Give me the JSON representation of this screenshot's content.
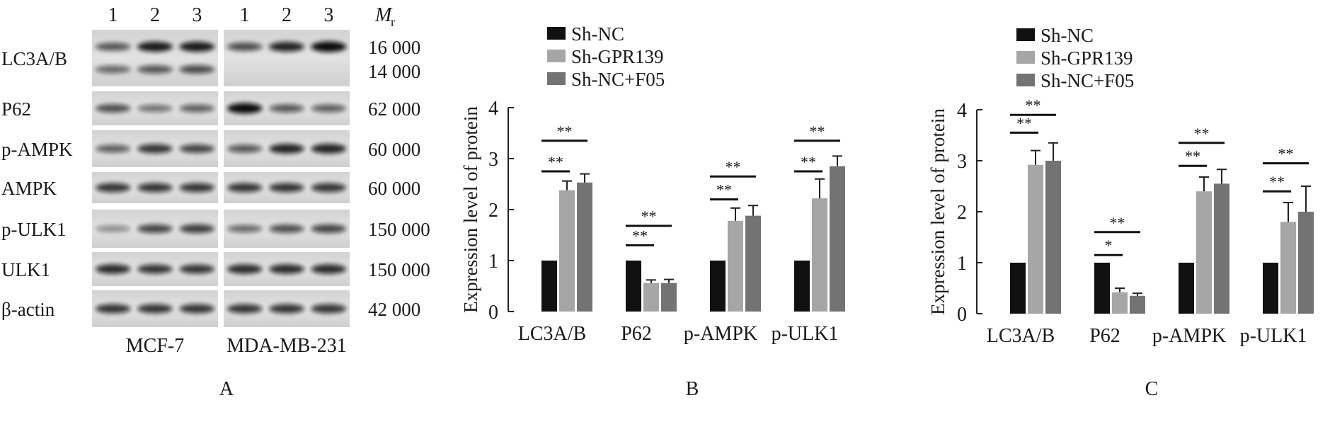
{
  "panel_a": {
    "label": "A",
    "lane_numbers": [
      "1",
      "2",
      "3"
    ],
    "mr_symbol": "M",
    "mr_subscript": "r",
    "cell_lines": [
      "MCF-7",
      "MDA-MB-231"
    ],
    "rows": [
      {
        "label": "LC3A/B",
        "mw": [
          "16 000",
          "14 000"
        ],
        "mcf7": [
          [
            0.55,
            0.9,
            0.9
          ],
          [
            0.45,
            0.55,
            0.6
          ]
        ],
        "mda": [
          [
            0.6,
            0.85,
            1.0
          ],
          [
            0.0,
            0.0,
            0.0
          ]
        ]
      },
      {
        "label": "P62",
        "mw": [
          "62 000"
        ],
        "mcf7": [
          [
            0.6,
            0.4,
            0.5
          ]
        ],
        "mda": [
          [
            1.0,
            0.55,
            0.5
          ]
        ]
      },
      {
        "label": "p-AMPK",
        "mw": [
          "60 000"
        ],
        "mcf7": [
          [
            0.5,
            0.75,
            0.65
          ]
        ],
        "mda": [
          [
            0.55,
            0.85,
            0.85
          ]
        ]
      },
      {
        "label": "AMPK",
        "mw": [
          "60 000"
        ],
        "mcf7": [
          [
            0.75,
            0.75,
            0.75
          ]
        ],
        "mda": [
          [
            0.75,
            0.75,
            0.75
          ]
        ]
      },
      {
        "label": "p-ULK1",
        "mw": [
          "150 000"
        ],
        "mcf7": [
          [
            0.25,
            0.65,
            0.7
          ]
        ],
        "mda": [
          [
            0.45,
            0.6,
            0.65
          ]
        ]
      },
      {
        "label": "ULK1",
        "mw": [
          "150 000"
        ],
        "mcf7": [
          [
            0.8,
            0.75,
            0.75
          ]
        ],
        "mda": [
          [
            0.8,
            0.8,
            0.8
          ]
        ]
      },
      {
        "label": "β-actin",
        "mw": [
          "42 000"
        ],
        "mcf7": [
          [
            0.75,
            0.75,
            0.75
          ]
        ],
        "mda": [
          [
            0.75,
            0.75,
            0.75
          ]
        ]
      }
    ]
  },
  "chart_data": [
    {
      "type": "bar",
      "panel_label": "B",
      "categories": [
        "LC3A/B",
        "P62",
        "p-AMPK",
        "p-ULK1"
      ],
      "series": [
        {
          "name": "Sh-NC",
          "values": [
            1.0,
            1.0,
            1.0,
            1.0
          ],
          "errors": [
            0,
            0,
            0,
            0
          ],
          "color": "#111111"
        },
        {
          "name": "Sh-GPR139",
          "values": [
            2.38,
            0.56,
            1.78,
            2.22
          ],
          "errors": [
            0.18,
            0.06,
            0.25,
            0.38
          ],
          "color": "#a6a6a6"
        },
        {
          "name": "Sh-NC+F05",
          "values": [
            2.53,
            0.56,
            1.88,
            2.85
          ],
          "errors": [
            0.17,
            0.07,
            0.2,
            0.2
          ],
          "color": "#737373"
        }
      ],
      "ylabel": "Expression level of protein",
      "ylim": [
        0,
        4
      ],
      "yticks": [
        0,
        1,
        2,
        3,
        4
      ],
      "significance": [
        {
          "category": 0,
          "to_series": 1,
          "label": "**",
          "y": 2.75
        },
        {
          "category": 0,
          "to_series": 2,
          "label": "**",
          "y": 3.35
        },
        {
          "category": 1,
          "to_series": 1,
          "label": "**",
          "y": 1.3
        },
        {
          "category": 1,
          "to_series": 2,
          "label": "**",
          "y": 1.68
        },
        {
          "category": 2,
          "to_series": 1,
          "label": "**",
          "y": 2.2
        },
        {
          "category": 2,
          "to_series": 2,
          "label": "**",
          "y": 2.65
        },
        {
          "category": 3,
          "to_series": 1,
          "label": "**",
          "y": 2.75
        },
        {
          "category": 3,
          "to_series": 2,
          "label": "**",
          "y": 3.35
        }
      ]
    },
    {
      "type": "bar",
      "panel_label": "C",
      "categories": [
        "LC3A/B",
        "P62",
        "p-AMPK",
        "p-ULK1"
      ],
      "series": [
        {
          "name": "Sh-NC",
          "values": [
            1.0,
            1.0,
            1.0,
            1.0
          ],
          "errors": [
            0,
            0,
            0,
            0
          ],
          "color": "#111111"
        },
        {
          "name": "Sh-GPR139",
          "values": [
            2.92,
            0.42,
            2.4,
            1.8
          ],
          "errors": [
            0.28,
            0.08,
            0.28,
            0.38
          ],
          "color": "#a6a6a6"
        },
        {
          "name": "Sh-NC+F05",
          "values": [
            3.0,
            0.35,
            2.55,
            2.0
          ],
          "errors": [
            0.35,
            0.05,
            0.28,
            0.5
          ],
          "color": "#737373"
        }
      ],
      "ylabel": "Expression level of protein",
      "ylim": [
        0,
        4
      ],
      "yticks": [
        0,
        1,
        2,
        3,
        4
      ],
      "significance": [
        {
          "category": 0,
          "to_series": 1,
          "label": "**",
          "y": 3.55
        },
        {
          "category": 0,
          "to_series": 2,
          "label": "**",
          "y": 3.9
        },
        {
          "category": 1,
          "to_series": 1,
          "label": "*",
          "y": 1.15
        },
        {
          "category": 1,
          "to_series": 2,
          "label": "**",
          "y": 1.6
        },
        {
          "category": 2,
          "to_series": 1,
          "label": "**",
          "y": 2.9
        },
        {
          "category": 2,
          "to_series": 2,
          "label": "**",
          "y": 3.35
        },
        {
          "category": 3,
          "to_series": 1,
          "label": "**",
          "y": 2.4
        },
        {
          "category": 3,
          "to_series": 2,
          "label": "**",
          "y": 2.95
        }
      ]
    }
  ]
}
